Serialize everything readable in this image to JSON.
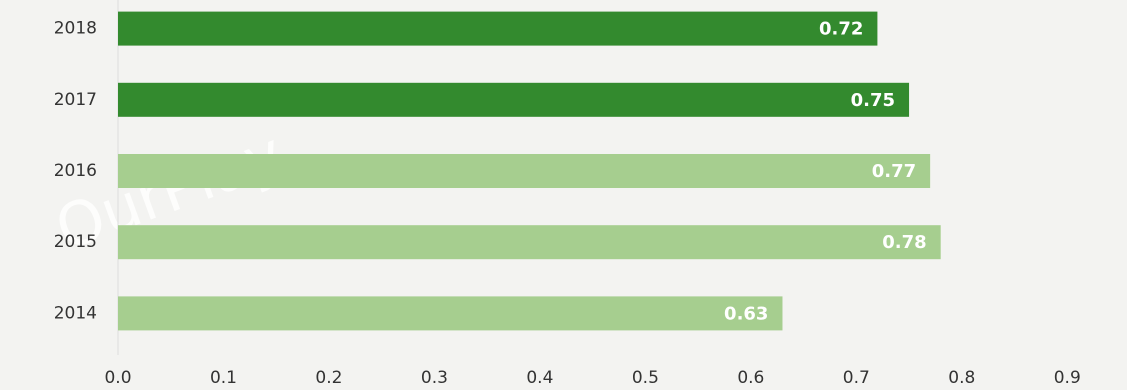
{
  "chart_data": {
    "type": "barh",
    "watermark": "OurPlay",
    "categories": [
      "2018",
      "2017",
      "2016",
      "2015",
      "2014"
    ],
    "values": [
      0.72,
      0.75,
      0.77,
      0.78,
      0.63
    ],
    "colors": [
      "#338a2e",
      "#338a2e",
      "#a6ce8f",
      "#a6ce8f",
      "#a6ce8f"
    ],
    "xlim": [
      0,
      0.95
    ],
    "xticks": [
      {
        "value": 0,
        "label": "0.0"
      },
      0.1,
      0.2,
      0.3,
      0.4,
      0.5,
      0.6,
      0.7,
      0.8,
      0.9
    ],
    "grid": false
  }
}
